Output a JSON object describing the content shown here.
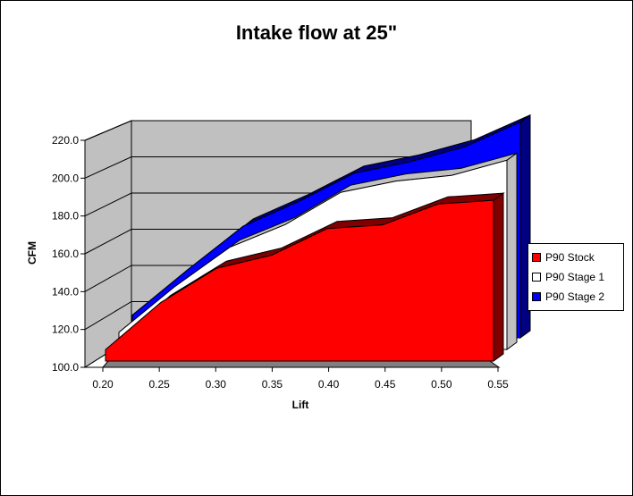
{
  "chart_data": {
    "type": "area",
    "title": "Intake flow at 25\"",
    "xlabel": "Lift",
    "ylabel": "CFM",
    "x": [
      0.2,
      0.25,
      0.3,
      0.35,
      0.4,
      0.45,
      0.5,
      0.55
    ],
    "x_tick_labels": [
      "0.20",
      "0.25",
      "0.30",
      "0.35",
      "0.40",
      "0.45",
      "0.50",
      "0.55"
    ],
    "y_tick_labels": [
      "100.0",
      "120.0",
      "140.0",
      "160.0",
      "180.0",
      "200.0",
      "220.0"
    ],
    "ylim": [
      100,
      220
    ],
    "xlim": [
      0.2,
      0.55
    ],
    "grid": true,
    "legend_position": "right",
    "series": [
      {
        "name": "P90 Stock",
        "color": "#ff0000",
        "x": [
          0.2,
          0.25,
          0.3,
          0.35,
          0.4,
          0.45,
          0.5,
          0.55
        ],
        "values": [
          106,
          131,
          149,
          156,
          170,
          172,
          183,
          185
        ]
      },
      {
        "name": "P90 Stage 1",
        "color": "#ffffff",
        "x": [
          0.2,
          0.25,
          0.3,
          0.35,
          0.4,
          0.45,
          0.5,
          0.55
        ],
        "values": [
          109,
          133,
          154,
          166,
          183,
          189,
          192,
          200
        ]
      },
      {
        "name": "P90 Stage 2",
        "color": "#0000ff",
        "x": [
          0.2,
          0.25,
          0.3,
          0.35,
          0.4,
          0.45,
          0.5,
          0.55
        ],
        "values": [
          112,
          136,
          159,
          172,
          187,
          193,
          201,
          214
        ]
      }
    ]
  }
}
